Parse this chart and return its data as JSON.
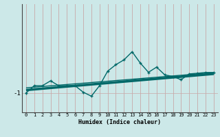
{
  "xlabel": "Humidex (Indice chaleur)",
  "background_color": "#cce8e8",
  "grid_color": "#c8a8a8",
  "line_color": "#006868",
  "x_ticks": [
    0,
    1,
    2,
    3,
    4,
    5,
    6,
    7,
    8,
    9,
    10,
    11,
    12,
    13,
    14,
    15,
    16,
    17,
    18,
    19,
    20,
    21,
    22,
    23
  ],
  "main_x": [
    0,
    1,
    2,
    3,
    4,
    5,
    6,
    7,
    8,
    9,
    10,
    11,
    12,
    13,
    14,
    15,
    16,
    17,
    18,
    19,
    20,
    21,
    22,
    23
  ],
  "main_y": [
    -1.0,
    -0.55,
    -0.55,
    -0.25,
    -0.55,
    -0.55,
    -0.55,
    -0.95,
    -1.2,
    -0.55,
    0.35,
    0.75,
    1.05,
    1.55,
    0.85,
    0.28,
    0.6,
    0.12,
    0.02,
    -0.18,
    0.18,
    0.22,
    0.27,
    0.27
  ],
  "ref_line1_y0": -0.82,
  "ref_line1_y1": 0.18,
  "ref_line2_y0": -0.68,
  "ref_line2_y1": 0.26,
  "ylim": [
    -2.2,
    4.5
  ],
  "xlim": [
    -0.5,
    23.5
  ],
  "ytick_val": -1.0,
  "ytick_label": "-1"
}
